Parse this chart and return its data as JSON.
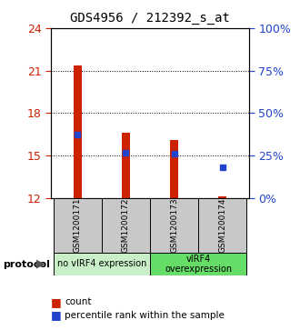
{
  "title": "GDS4956 / 212392_s_at",
  "samples": [
    "GSM1200171",
    "GSM1200172",
    "GSM1200173",
    "GSM1200174"
  ],
  "bar_bottoms": [
    12,
    12,
    12,
    12
  ],
  "bar_tops": [
    21.35,
    16.6,
    16.1,
    12.1
  ],
  "percentile_values": [
    16.5,
    15.2,
    15.15,
    14.2
  ],
  "ylim": [
    12,
    24
  ],
  "yticks_left": [
    12,
    15,
    18,
    21,
    24
  ],
  "yticks_right_vals": [
    0,
    25,
    50,
    75,
    100
  ],
  "bar_color": "#cc2200",
  "dot_color": "#2244cc",
  "group1_label": "no vIRF4 expression",
  "group2_label": "vIRF4\noverexpression",
  "group1_color": "#c8efc8",
  "group2_color": "#66dd66",
  "sample_box_color": "#c8c8c8",
  "protocol_label": "protocol",
  "left_tick_color": "#cc2200",
  "right_tick_color": "#2244cc",
  "bar_width": 0.18,
  "figsize": [
    3.3,
    3.63
  ],
  "dpi": 100
}
